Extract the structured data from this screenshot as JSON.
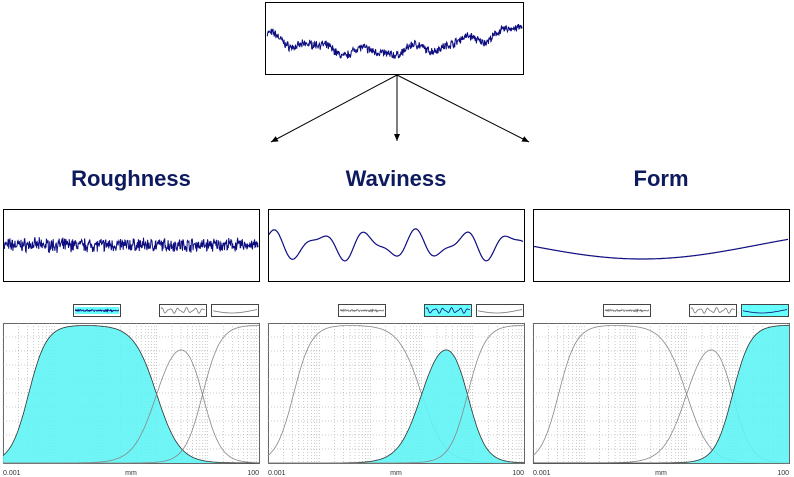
{
  "panels": [
    {
      "title": "Roughness",
      "axis_min": "0.001",
      "axis_unit": "mm",
      "axis_max": "100"
    },
    {
      "title": "Waviness",
      "axis_min": "0.001",
      "axis_unit": "mm",
      "axis_max": "100"
    },
    {
      "title": "Form",
      "axis_min": "0.001",
      "axis_unit": "mm",
      "axis_max": "100"
    }
  ]
}
